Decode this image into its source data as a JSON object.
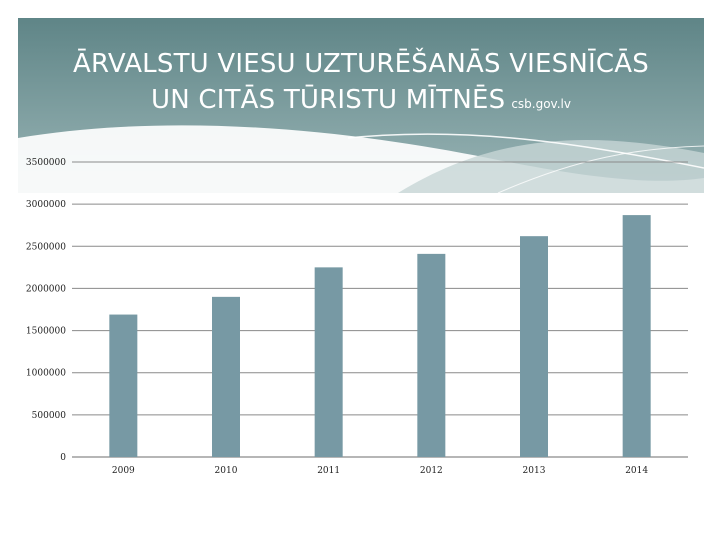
{
  "slide": {
    "title_line1": "ĀRVALSTU VIESU UZTURĒŠANĀS VIESNĪCĀS",
    "title_line2": "UN CITĀS TŪRISTU MĪTNĒS",
    "source": "csb.gov.lv"
  },
  "colors": {
    "header_top": "#5f8587",
    "header_bottom": "#9ab5b6",
    "bar": "#7799a4",
    "grid": "#8a8a8a"
  },
  "chart_data": {
    "type": "bar",
    "categories": [
      "2009",
      "2010",
      "2011",
      "2012",
      "2013",
      "2014"
    ],
    "values": [
      1690000,
      1900000,
      2250000,
      2410000,
      2620000,
      2870000
    ],
    "ylim": [
      0,
      3500000
    ],
    "yticks": [
      0,
      500000,
      1000000,
      1500000,
      2000000,
      2500000,
      3000000,
      3500000
    ],
    "grid": true,
    "legend": "none"
  }
}
